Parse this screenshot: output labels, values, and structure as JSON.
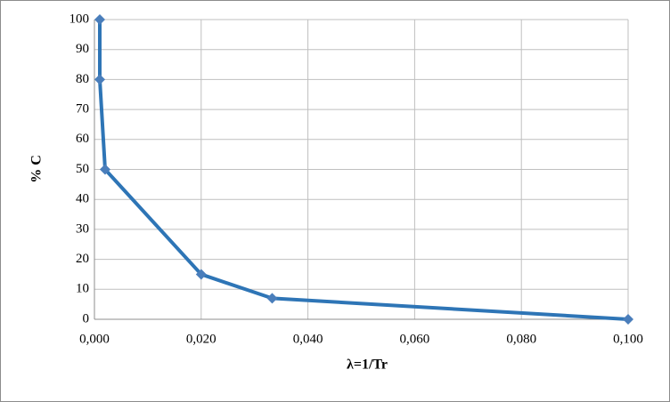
{
  "chart_data": {
    "type": "line",
    "x_label": "λ=1/Tr",
    "y_label": "% C",
    "x": [
      0.001,
      0.001,
      0.002,
      0.02,
      0.0333,
      0.1
    ],
    "series": [
      {
        "color": "#2e75b6",
        "marker_color": "#4a7ebb",
        "values": [
          100,
          80,
          50,
          15,
          7,
          0
        ]
      }
    ],
    "xlim": [
      0,
      0.1
    ],
    "xticks": [
      {
        "value": 0,
        "label": "0,000"
      },
      {
        "value": 0.02,
        "label": "0,020"
      },
      {
        "value": 0.04,
        "label": "0,040"
      },
      {
        "value": 0.06,
        "label": "0,060"
      },
      {
        "value": 0.08,
        "label": "0,080"
      },
      {
        "value": 0.1,
        "label": "0,100"
      }
    ],
    "ylim": [
      0,
      100
    ],
    "yticks": [
      0,
      10,
      20,
      30,
      40,
      50,
      60,
      70,
      80,
      90,
      100
    ],
    "grid": true
  }
}
